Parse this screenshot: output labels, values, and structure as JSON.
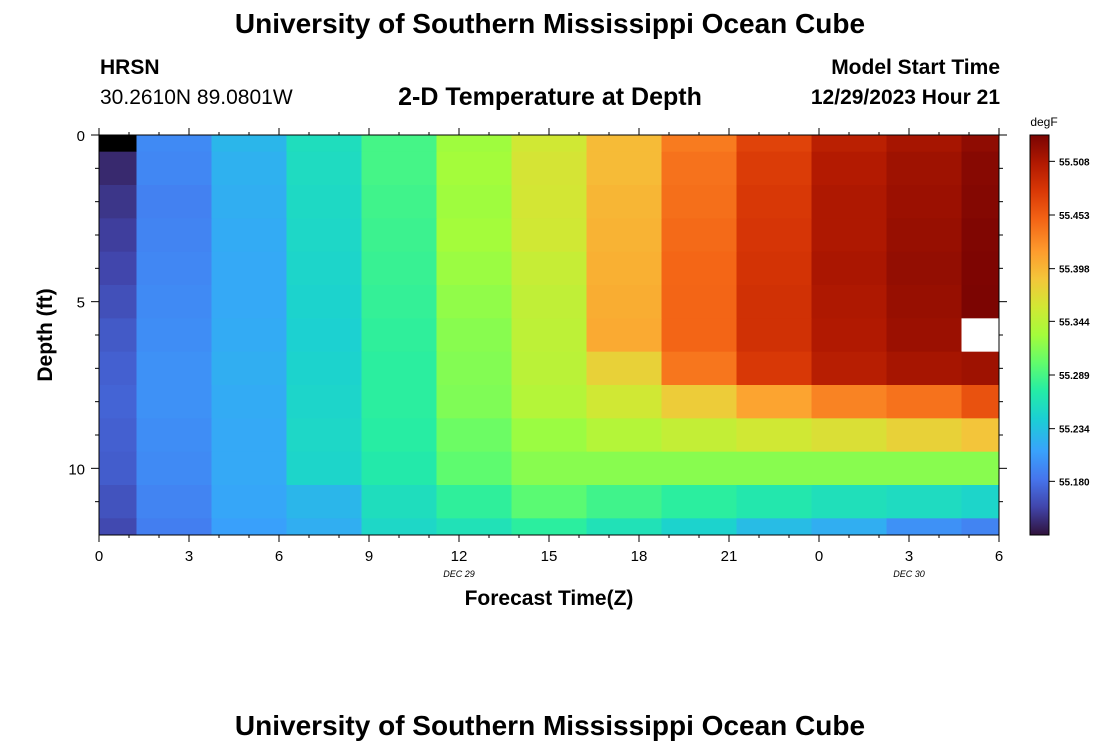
{
  "header": {
    "title": "University of Southern Mississippi Ocean Cube",
    "station": "HRSN",
    "coords": "30.2610N  89.0801W",
    "subtitle": "2-D Temperature at Depth",
    "model_label": "Model Start Time",
    "model_time": "12/29/2023 Hour 21"
  },
  "footer": {
    "title": "University of Southern Mississippi Ocean Cube"
  },
  "chart_data": {
    "type": "heatmap",
    "title": "2-D Temperature at Depth",
    "xlabel": "Forecast Time(Z)",
    "ylabel": "Depth (ft)",
    "x_tick_labels": [
      "0",
      "3",
      "6",
      "9",
      "12",
      "15",
      "18",
      "21",
      "0",
      "3",
      "6"
    ],
    "x_range": [
      0,
      30
    ],
    "date_labels": [
      {
        "x": 12,
        "label": "DEC 29"
      },
      {
        "x": 27,
        "label": "DEC 30"
      }
    ],
    "y_ticks": [
      0,
      5,
      10
    ],
    "y_range": [
      0,
      12
    ],
    "columns_x": [
      0,
      2.5,
      5,
      7.5,
      10,
      12.5,
      15,
      17.5,
      20,
      22.5,
      25,
      27.5,
      30
    ],
    "rows_depth": [
      0,
      0.5,
      1.5,
      2.5,
      3.5,
      4.5,
      5.5,
      6.5,
      7.5,
      8.5,
      9.5,
      10.5,
      11.5,
      12
    ],
    "colorbar": {
      "unit": "degF",
      "min": 55.125,
      "max": 55.535,
      "labels": [
        "55.508",
        "55.453",
        "55.398",
        "55.344",
        "55.289",
        "55.234",
        "55.180"
      ]
    },
    "values": [
      [
        55.128,
        55.196,
        55.226,
        55.258,
        55.288,
        55.328,
        55.358,
        55.395,
        55.435,
        55.47,
        55.5,
        55.512,
        55.524
      ],
      [
        55.138,
        55.194,
        55.222,
        55.256,
        55.288,
        55.33,
        55.362,
        55.395,
        55.44,
        55.475,
        55.505,
        55.516,
        55.528
      ],
      [
        55.145,
        55.19,
        55.22,
        55.254,
        55.286,
        55.328,
        55.36,
        55.398,
        55.442,
        55.478,
        55.508,
        55.518,
        55.53
      ],
      [
        55.15,
        55.192,
        55.218,
        55.252,
        55.284,
        55.33,
        55.358,
        55.4,
        55.445,
        55.48,
        55.508,
        55.52,
        55.532
      ],
      [
        55.154,
        55.194,
        55.216,
        55.25,
        55.282,
        55.326,
        55.352,
        55.402,
        55.447,
        55.482,
        55.51,
        55.522,
        55.533
      ],
      [
        55.16,
        55.196,
        55.216,
        55.248,
        55.28,
        55.322,
        55.348,
        55.404,
        55.448,
        55.484,
        55.508,
        55.52,
        55.534
      ],
      [
        55.166,
        55.198,
        55.218,
        55.246,
        55.278,
        55.318,
        55.346,
        55.406,
        55.448,
        55.484,
        55.506,
        55.518,
        null
      ],
      [
        55.17,
        55.2,
        55.22,
        55.248,
        55.276,
        55.316,
        55.344,
        55.378,
        55.438,
        55.478,
        55.502,
        55.512,
        55.516
      ],
      [
        55.172,
        55.2,
        55.218,
        55.25,
        55.276,
        55.314,
        55.34,
        55.358,
        55.382,
        55.41,
        55.43,
        55.44,
        55.46
      ],
      [
        55.17,
        55.198,
        55.216,
        55.252,
        55.274,
        55.306,
        55.326,
        55.34,
        55.35,
        55.358,
        55.366,
        55.378,
        55.388
      ],
      [
        55.168,
        55.196,
        55.216,
        55.25,
        55.27,
        55.3,
        55.318,
        55.318,
        55.318,
        55.318,
        55.318,
        55.318,
        55.318
      ],
      [
        55.162,
        55.192,
        55.214,
        55.226,
        55.258,
        55.278,
        55.298,
        55.286,
        55.276,
        55.268,
        55.26,
        55.256,
        55.25
      ],
      [
        55.156,
        55.188,
        55.21,
        55.22,
        55.252,
        55.262,
        55.276,
        55.262,
        55.248,
        55.23,
        55.22,
        55.2,
        55.192
      ]
    ]
  }
}
